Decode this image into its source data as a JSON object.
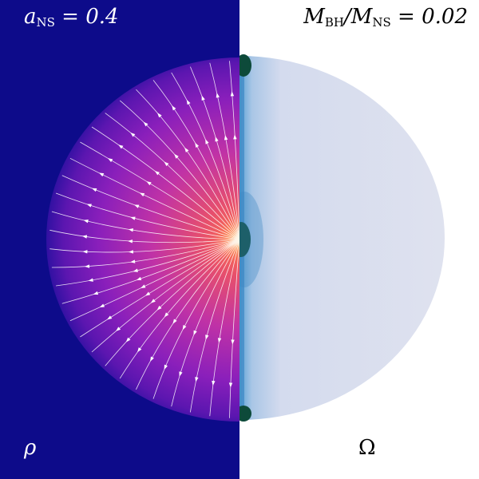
{
  "panels": {
    "left": {
      "top_label": {
        "a": "a",
        "sub": "NS",
        "eq": " = 0.4"
      },
      "bottom_label": "ρ"
    },
    "right": {
      "top_label": {
        "m1": "M",
        "sub1": "BH",
        "slash": "/",
        "m2": "M",
        "sub2": "NS",
        "eq": " = 0.02"
      },
      "bottom_label": "Ω"
    }
  },
  "colors": {
    "background_density": "#0d0b8a",
    "density_core": "#ff6f50",
    "density_mid": "#c232a8",
    "density_outer": "#6a16b6",
    "omega_fill": "#dde1ee",
    "omega_inner": "#7aaed8",
    "omega_dark": "#0d4a3a",
    "streamlines": "#ffffff"
  }
}
